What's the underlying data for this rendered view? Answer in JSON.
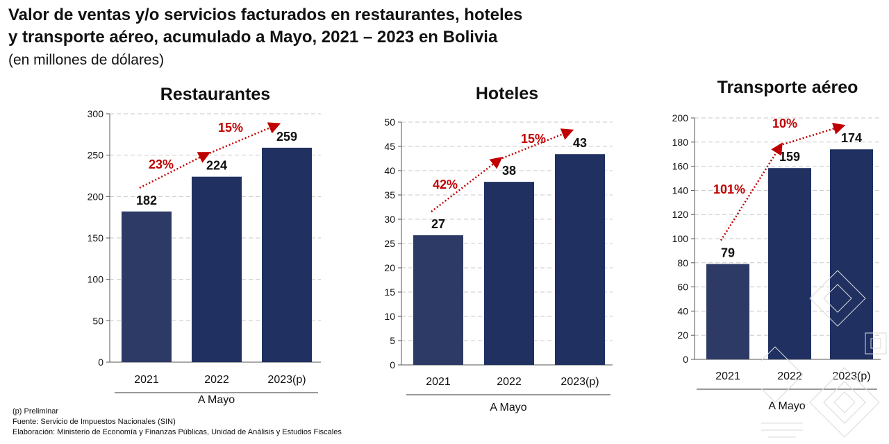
{
  "title": {
    "line1": "Valor de ventas y/o servicios facturados en restaurantes, hoteles",
    "line2": "y transporte aéreo, acumulado a Mayo, 2021 – 2023 en Bolivia"
  },
  "subtitle": "(en millones de dólares)",
  "colors": {
    "bar_2021": "#2e3a66",
    "bar_other": "#1f3061",
    "growth": "#c00000",
    "grid": "#c8c8c8"
  },
  "chart_data": [
    {
      "type": "bar",
      "title": "Restaurantes",
      "categories": [
        "2021",
        "2022",
        "2023(p)"
      ],
      "values": [
        182,
        224,
        259
      ],
      "value_labels": [
        "182",
        "224",
        "259"
      ],
      "growth": [
        "23%",
        "15%"
      ],
      "xlabel": "A Mayo",
      "ylim": [
        0,
        300
      ],
      "yticks": [
        "0",
        "50",
        "100",
        "150",
        "200",
        "250",
        "300"
      ],
      "grid": true
    },
    {
      "type": "bar",
      "title": "Hoteles",
      "categories": [
        "2021",
        "2022",
        "2023(p)"
      ],
      "values": [
        26.7,
        37.7,
        43.4
      ],
      "value_labels": [
        "27",
        "38",
        "43"
      ],
      "growth": [
        "42%",
        "15%"
      ],
      "xlabel": "A Mayo",
      "ylim": [
        0,
        50
      ],
      "yticks": [
        "0",
        "5",
        "10",
        "15",
        "20",
        "25",
        "30",
        "35",
        "40",
        "45",
        "50"
      ],
      "grid": true
    },
    {
      "type": "bar",
      "title": "Transporte aéreo",
      "categories": [
        "2021",
        "2022",
        "2023(p)"
      ],
      "values": [
        79,
        158.5,
        174
      ],
      "value_labels": [
        "79",
        "159",
        "174"
      ],
      "growth": [
        "101%",
        "10%"
      ],
      "xlabel": "A Mayo",
      "ylim": [
        0,
        200
      ],
      "yticks": [
        "0",
        "20",
        "40",
        "60",
        "80",
        "100",
        "120",
        "140",
        "160",
        "180",
        "200"
      ],
      "grid": true
    }
  ],
  "footnotes": {
    "preliminar": "(p) Preliminar",
    "fuente": "Fuente: Servicio de Impuestos Nacionales (SIN)",
    "elaboracion": "Elaboración: Ministerio de Economía y Finanzas Públicas, Unidad de Análisis y Estudios Fiscales"
  }
}
